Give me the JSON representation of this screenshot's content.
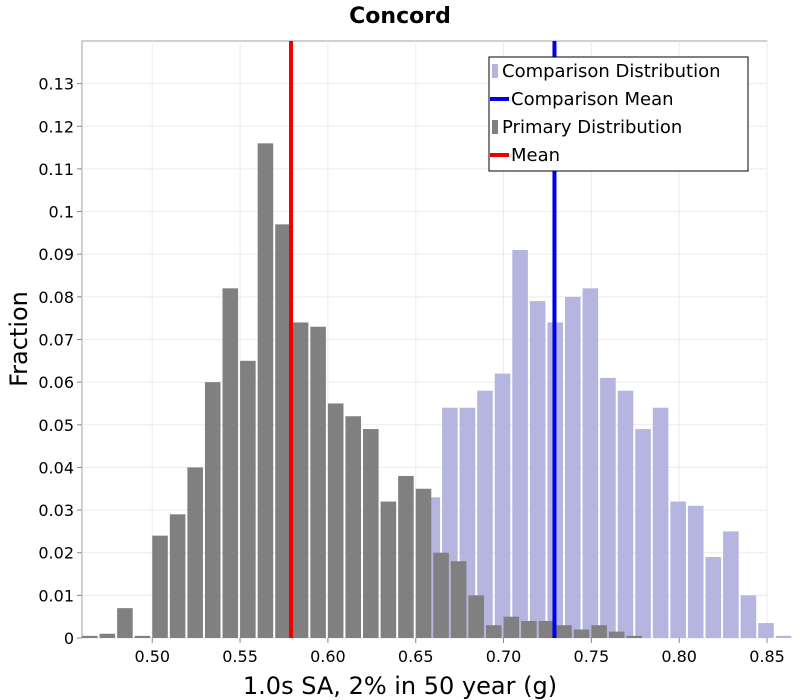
{
  "chart_data": {
    "type": "bar",
    "title": "Concord",
    "xlabel": "1.0s SA, 2% in 50 year (g)",
    "ylabel": "Fraction",
    "xlim": [
      0.46,
      0.85
    ],
    "ylim": [
      0,
      0.14
    ],
    "bin_width": 0.01,
    "x_ticks": [
      "0.50",
      "0.55",
      "0.60",
      "0.65",
      "0.70",
      "0.75",
      "0.80",
      "0.85"
    ],
    "x_tick_values": [
      0.5,
      0.55,
      0.6,
      0.65,
      0.7,
      0.75,
      0.8,
      0.85
    ],
    "y_ticks": [
      "0",
      "0.01",
      "0.02",
      "0.03",
      "0.04",
      "0.05",
      "0.06",
      "0.07",
      "0.08",
      "0.09",
      "0.1",
      "0.11",
      "0.12",
      "0.13"
    ],
    "y_tick_values": [
      0,
      0.01,
      0.02,
      0.03,
      0.04,
      0.05,
      0.06,
      0.07,
      0.08,
      0.09,
      0.1,
      0.11,
      0.12,
      0.13
    ],
    "grid": true,
    "legend_position": "top-right",
    "legend": [
      {
        "label": "Comparison Distribution",
        "kind": "bar",
        "color": "#b5b5df"
      },
      {
        "label": "Comparison Mean",
        "kind": "line",
        "color": "#0000ee"
      },
      {
        "label": "Primary Distribution",
        "kind": "bar",
        "color": "#808080"
      },
      {
        "label": "Mean",
        "kind": "line",
        "color": "#ee0000"
      }
    ],
    "series": [
      {
        "name": "Comparison Distribution",
        "color": "#b5b5df",
        "start": 0.655,
        "values": [
          0.033,
          0.054,
          0.054,
          0.058,
          0.062,
          0.091,
          0.079,
          0.074,
          0.08,
          0.082,
          0.061,
          0.058,
          0.049,
          0.054,
          0.032,
          0.031,
          0.019,
          0.025,
          0.01,
          0.0035,
          0.0005
        ]
      },
      {
        "name": "Primary Distribution",
        "color": "#808080",
        "start": 0.46,
        "values": [
          0.0005,
          0.001,
          0.007,
          0.0005,
          0.024,
          0.029,
          0.04,
          0.06,
          0.082,
          0.065,
          0.116,
          0.097,
          0.074,
          0.073,
          0.055,
          0.052,
          0.049,
          0.032,
          0.038,
          0.035,
          0.02,
          0.018,
          0.01,
          0.003,
          0.005,
          0.004,
          0.004,
          0.003,
          0.002,
          0.003,
          0.0015,
          0.0005
        ]
      }
    ],
    "lines": [
      {
        "name": "Mean",
        "x": 0.579,
        "color": "#ee0000"
      },
      {
        "name": "Comparison Mean",
        "x": 0.729,
        "color": "#0000ee"
      }
    ]
  }
}
